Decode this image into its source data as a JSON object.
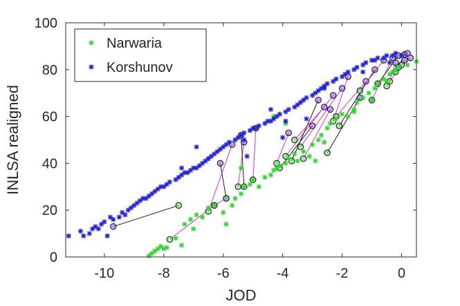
{
  "chart_data": {
    "type": "scatter",
    "title": "",
    "xlabel": "JOD",
    "ylabel": "INLSA realigned",
    "xlim": [
      -11.3,
      0.5
    ],
    "ylim": [
      0,
      100
    ],
    "xticks": [
      -10,
      -8,
      -6,
      -4,
      -2,
      0
    ],
    "yticks": [
      0,
      20,
      40,
      60,
      80,
      100
    ],
    "grid": false,
    "legend_position": "top-left",
    "series": [
      {
        "name": "Narwaria",
        "marker": "asterisk",
        "color": "#2ed62e",
        "points": [
          [
            -8.5,
            0.5
          ],
          [
            -8.4,
            1.5
          ],
          [
            -8.3,
            2.5
          ],
          [
            -8.2,
            3.5
          ],
          [
            -8.1,
            4.5
          ],
          [
            -8.0,
            3.5
          ],
          [
            -7.9,
            4
          ],
          [
            -7.6,
            8
          ],
          [
            -7.4,
            5
          ],
          [
            -7.3,
            14
          ],
          [
            -7.1,
            16
          ],
          [
            -7.0,
            12
          ],
          [
            -6.9,
            18
          ],
          [
            -6.7,
            17
          ],
          [
            -6.5,
            21
          ],
          [
            -6.3,
            22
          ],
          [
            -6.0,
            19
          ],
          [
            -5.9,
            14
          ],
          [
            -5.7,
            22
          ],
          [
            -5.6,
            25
          ],
          [
            -5.4,
            27
          ],
          [
            -5.3,
            30
          ],
          [
            -5.1,
            31
          ],
          [
            -5.0,
            33
          ],
          [
            -4.8,
            30
          ],
          [
            -4.6,
            34
          ],
          [
            -4.4,
            35
          ],
          [
            -4.3,
            37
          ],
          [
            -4.2,
            38
          ],
          [
            -4.1,
            39
          ],
          [
            -3.9,
            40
          ],
          [
            -3.8,
            42
          ],
          [
            -3.6,
            44
          ],
          [
            -3.5,
            41
          ],
          [
            -3.3,
            45
          ],
          [
            -3.1,
            43
          ],
          [
            -3.0,
            48
          ],
          [
            -2.8,
            50
          ],
          [
            -2.7,
            52
          ],
          [
            -2.5,
            55
          ],
          [
            -2.4,
            57
          ],
          [
            -2.2,
            59
          ],
          [
            -2.0,
            61
          ],
          [
            -1.8,
            60
          ],
          [
            -1.6,
            63
          ],
          [
            -1.5,
            66
          ],
          [
            -1.3,
            68
          ],
          [
            -1.1,
            70
          ],
          [
            -1.0,
            67
          ],
          [
            -0.9,
            72
          ],
          [
            -0.8,
            74
          ],
          [
            -0.6,
            76
          ],
          [
            -0.5,
            75
          ],
          [
            -0.4,
            78
          ],
          [
            -0.3,
            79
          ],
          [
            -0.2,
            80
          ],
          [
            -0.1,
            81
          ],
          [
            0.2,
            82
          ],
          [
            0.5,
            83.5
          ],
          [
            -5.4,
            38
          ],
          [
            -4.3,
            60
          ],
          [
            -3.9,
            57
          ],
          [
            -1.6,
            62
          ],
          [
            -2.6,
            49
          ],
          [
            -2.9,
            41
          ]
        ]
      },
      {
        "name": "Korshunov",
        "marker": "asterisk",
        "color": "#1f1fd8",
        "points": [
          [
            -11.2,
            9
          ],
          [
            -10.8,
            11
          ],
          [
            -10.7,
            9
          ],
          [
            -10.5,
            10
          ],
          [
            -10.4,
            12
          ],
          [
            -10.3,
            13
          ],
          [
            -10.2,
            12
          ],
          [
            -10.1,
            14
          ],
          [
            -10.0,
            15
          ],
          [
            -9.9,
            9
          ],
          [
            -9.8,
            17
          ],
          [
            -9.7,
            16
          ],
          [
            -9.5,
            17
          ],
          [
            -9.4,
            19
          ],
          [
            -9.3,
            18
          ],
          [
            -9.2,
            20
          ],
          [
            -9.1,
            21
          ],
          [
            -9.0,
            22
          ],
          [
            -8.9,
            23
          ],
          [
            -8.8,
            24
          ],
          [
            -8.7,
            25
          ],
          [
            -8.6,
            25
          ],
          [
            -8.5,
            26
          ],
          [
            -8.4,
            27
          ],
          [
            -8.3,
            28
          ],
          [
            -8.2,
            29
          ],
          [
            -8.1,
            30
          ],
          [
            -8.0,
            30
          ],
          [
            -7.9,
            31
          ],
          [
            -7.8,
            32
          ],
          [
            -7.6,
            33
          ],
          [
            -7.5,
            34
          ],
          [
            -7.4,
            35
          ],
          [
            -7.3,
            36
          ],
          [
            -7.2,
            36
          ],
          [
            -7.1,
            37
          ],
          [
            -7.0,
            38
          ],
          [
            -6.9,
            38
          ],
          [
            -6.8,
            39
          ],
          [
            -6.7,
            40
          ],
          [
            -6.6,
            41
          ],
          [
            -6.5,
            42
          ],
          [
            -6.4,
            43
          ],
          [
            -6.3,
            44
          ],
          [
            -6.2,
            45
          ],
          [
            -6.1,
            46
          ],
          [
            -6.0,
            47
          ],
          [
            -5.9,
            48
          ],
          [
            -5.8,
            49
          ],
          [
            -5.6,
            50
          ],
          [
            -5.5,
            51
          ],
          [
            -5.4,
            52
          ],
          [
            -5.3,
            53
          ],
          [
            -5.1,
            54
          ],
          [
            -5.0,
            55
          ],
          [
            -4.9,
            55
          ],
          [
            -4.8,
            56
          ],
          [
            -4.6,
            57
          ],
          [
            -4.5,
            58
          ],
          [
            -4.4,
            58
          ],
          [
            -4.3,
            59
          ],
          [
            -4.2,
            60
          ],
          [
            -4.1,
            61
          ],
          [
            -3.9,
            62
          ],
          [
            -3.8,
            63
          ],
          [
            -3.6,
            64
          ],
          [
            -3.5,
            65
          ],
          [
            -3.4,
            66
          ],
          [
            -3.3,
            67
          ],
          [
            -3.2,
            68
          ],
          [
            -3.0,
            69
          ],
          [
            -2.9,
            70
          ],
          [
            -2.8,
            71
          ],
          [
            -2.7,
            72
          ],
          [
            -2.6,
            73
          ],
          [
            -2.5,
            74
          ],
          [
            -2.3,
            75
          ],
          [
            -2.2,
            76
          ],
          [
            -2.0,
            77
          ],
          [
            -1.9,
            78
          ],
          [
            -1.8,
            79
          ],
          [
            -1.6,
            80
          ],
          [
            -1.5,
            81
          ],
          [
            -1.3,
            82
          ],
          [
            -1.2,
            83
          ],
          [
            -1.0,
            84
          ],
          [
            -0.9,
            84
          ],
          [
            -0.8,
            85
          ],
          [
            -0.6,
            85
          ],
          [
            -0.5,
            86
          ],
          [
            -0.3,
            86
          ],
          [
            -0.2,
            87
          ],
          [
            0.0,
            86
          ],
          [
            -7.4,
            38
          ],
          [
            -6.9,
            47
          ],
          [
            -6.5,
            42
          ],
          [
            -5.3,
            50
          ],
          [
            -5.2,
            43
          ],
          [
            -4.4,
            63
          ],
          [
            -4.0,
            51
          ],
          [
            -3.9,
            58
          ],
          [
            -3.2,
            59
          ],
          [
            -2.6,
            72
          ],
          [
            -1.3,
            79
          ],
          [
            -0.4,
            83
          ]
        ]
      }
    ],
    "pairs": [
      [
        [
          -7.5,
          22
        ],
        [
          -9.7,
          13
        ]
      ],
      [
        [
          -7.8,
          7.5
        ],
        [
          -6.3,
          22
        ]
      ],
      [
        [
          -6.3,
          22
        ],
        [
          -5.9,
          25
        ]
      ],
      [
        [
          -5.9,
          25
        ],
        [
          -6.1,
          40
        ]
      ],
      [
        [
          -6.5,
          19.5
        ],
        [
          -5.7,
          48
        ]
      ],
      [
        [
          -5.5,
          30
        ],
        [
          -5.3,
          49
        ]
      ],
      [
        [
          -5.3,
          30
        ],
        [
          -5.4,
          52
        ]
      ],
      [
        [
          -5.0,
          33
        ],
        [
          -4.9,
          55
        ]
      ],
      [
        [
          -4.2,
          40
        ],
        [
          -3.8,
          53
        ]
      ],
      [
        [
          -4.1,
          38
        ],
        [
          -3.0,
          56
        ]
      ],
      [
        [
          -3.9,
          43
        ],
        [
          -2.3,
          69
        ]
      ],
      [
        [
          -3.6,
          50
        ],
        [
          -2.6,
          64
        ]
      ],
      [
        [
          -3.7,
          41
        ],
        [
          -2.8,
          67
        ]
      ],
      [
        [
          -3.3,
          42
        ],
        [
          -2.4,
          63
        ]
      ],
      [
        [
          -3.4,
          47
        ],
        [
          -2.0,
          72
        ]
      ],
      [
        [
          -2.5,
          44.5
        ],
        [
          -1.4,
          68
        ]
      ],
      [
        [
          -2.3,
          58
        ],
        [
          -1.8,
          77
        ]
      ],
      [
        [
          -2.2,
          60
        ],
        [
          -1.2,
          75
        ]
      ],
      [
        [
          -2.1,
          56
        ],
        [
          -0.9,
          80
        ]
      ],
      [
        [
          -1.4,
          71
        ],
        [
          -0.6,
          84
        ]
      ],
      [
        [
          -1.0,
          67
        ],
        [
          -0.3,
          85
        ]
      ],
      [
        [
          -0.8,
          74
        ],
        [
          -0.1,
          86
        ]
      ],
      [
        [
          -0.5,
          73
        ],
        [
          0.1,
          84
        ]
      ],
      [
        [
          -0.4,
          75
        ],
        [
          -0.2,
          83
        ]
      ],
      [
        [
          -0.2,
          79
        ],
        [
          0.1,
          86.5
        ]
      ],
      [
        [
          -0.1,
          81
        ],
        [
          0.3,
          85
        ]
      ],
      [
        [
          0.0,
          82
        ],
        [
          0.2,
          87
        ]
      ]
    ],
    "colors": {
      "pair_line_color": "#e02de0",
      "circle_edge_color": "#1a1a1a",
      "axis_color": "#262626"
    }
  }
}
